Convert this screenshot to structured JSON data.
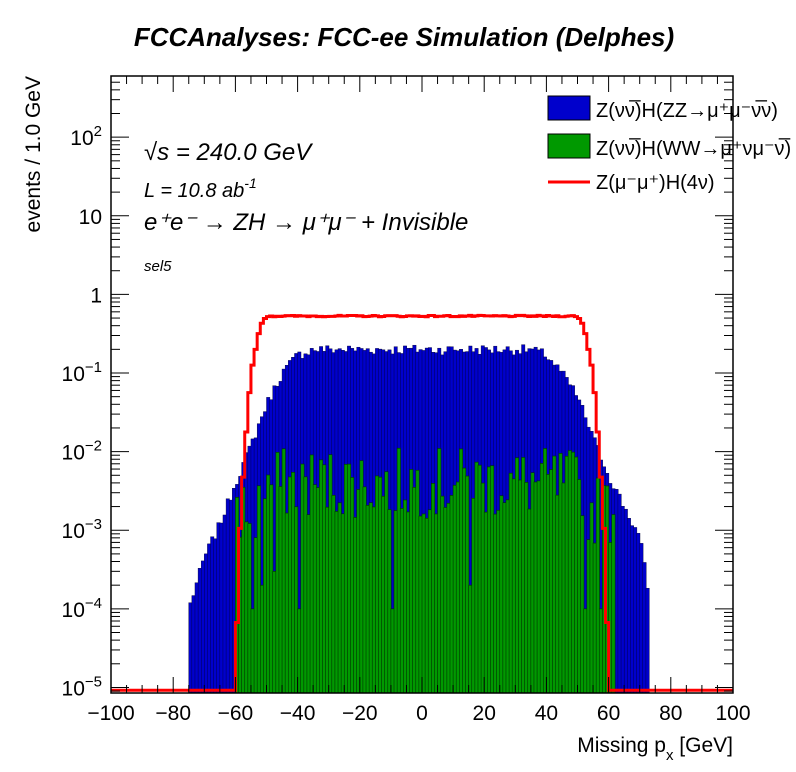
{
  "chart_data": {
    "type": "histogram",
    "title": "FCCAnalyses: FCC-ee Simulation (Delphes)",
    "xlabel": "Missing p_x [GeV]",
    "xlabel_main": "Missing p",
    "xlabel_sub": "x",
    "xlabel_unit": " [GeV]",
    "ylabel": "events / 1.0 GeV",
    "xlim": [
      -100,
      100
    ],
    "ylim": [
      8.5e-06,
      600
    ],
    "log_y": true,
    "grid": false,
    "legend_position": "top-right",
    "x_ticks": [
      -100,
      -80,
      -60,
      -40,
      -20,
      0,
      20,
      40,
      60,
      80,
      100
    ],
    "x_tick_labels": [
      "−100",
      "−80",
      "−60",
      "−40",
      "−20",
      "0",
      "20",
      "40",
      "60",
      "80",
      "100"
    ],
    "y_ticks": [
      {
        "value": 100,
        "base": "10",
        "exp": "2"
      },
      {
        "value": 10,
        "base": "10",
        "exp": ""
      },
      {
        "value": 1,
        "base": "1",
        "exp": ""
      },
      {
        "value": 0.1,
        "base": "10",
        "exp": "−1"
      },
      {
        "value": 0.01,
        "base": "10",
        "exp": "−2"
      },
      {
        "value": 0.001,
        "base": "10",
        "exp": "−3"
      },
      {
        "value": 0.0001,
        "base": "10",
        "exp": "−4"
      },
      {
        "value": 1e-05,
        "base": "10",
        "exp": "−5"
      }
    ],
    "annotations": {
      "sqrt_s": "√s = 240.0 GeV",
      "lumi": "L = 10.8 ab",
      "lumi_exp": "-1",
      "process": "e⁺e⁻ → ZH → μ⁺μ⁻ + Invisible",
      "selection": "sel5"
    },
    "series": [
      {
        "name": "Z(νν̅)H(ZZ→μ⁺μ⁻ν̅ν)",
        "style": "filled",
        "color": "#0000cc",
        "profile": {
          "plateau": 0.21,
          "plateau_range": [
            -40,
            40
          ],
          "falloff_points": [
            [
              -75,
              0.0001
            ],
            [
              -70,
              0.00045
            ],
            [
              -65,
              0.0012
            ],
            [
              -60,
              0.004
            ],
            [
              -55,
              0.012
            ],
            [
              -50,
              0.04
            ],
            [
              -45,
              0.1
            ],
            [
              -40,
              0.17
            ],
            [
              -35,
              0.2
            ],
            [
              35,
              0.2
            ],
            [
              40,
              0.17
            ],
            [
              45,
              0.1
            ],
            [
              50,
              0.05
            ],
            [
              55,
              0.015
            ],
            [
              60,
              0.005
            ],
            [
              65,
              0.002
            ],
            [
              70,
              0.0008
            ],
            [
              73,
              0.00015
            ]
          ]
        }
      },
      {
        "name": "Z(νν̅)H(WW→μ⁺νμ⁻ν̅)",
        "style": "filled",
        "color": "#009900",
        "profile": {
          "typical": 0.004,
          "range": [
            -60,
            62
          ],
          "spikes": [
            [
              -55,
              0.0001
            ],
            [
              -52,
              0.0002
            ],
            [
              -48,
              0.0003
            ],
            [
              -40,
              0.0001
            ],
            [
              -10,
              0.0001
            ],
            [
              15,
              0.0002
            ],
            [
              52,
              0.0001
            ],
            [
              57,
              0.0001
            ]
          ]
        }
      },
      {
        "name": "Z(μ⁻μ⁺)H(4ν)",
        "style": "line",
        "color": "#ff0000",
        "profile": {
          "plateau": 0.53,
          "edges": [
            [
              -60,
              9e-06
            ],
            [
              -59,
              0.0005
            ],
            [
              -57,
              0.01
            ],
            [
              -55,
              0.1
            ],
            [
              -52,
              0.4
            ],
            [
              -50,
              0.53
            ],
            [
              50,
              0.53
            ],
            [
              52,
              0.4
            ],
            [
              55,
              0.1
            ],
            [
              57,
              0.01
            ],
            [
              59,
              0.0005
            ],
            [
              60,
              9e-06
            ]
          ]
        }
      }
    ]
  }
}
